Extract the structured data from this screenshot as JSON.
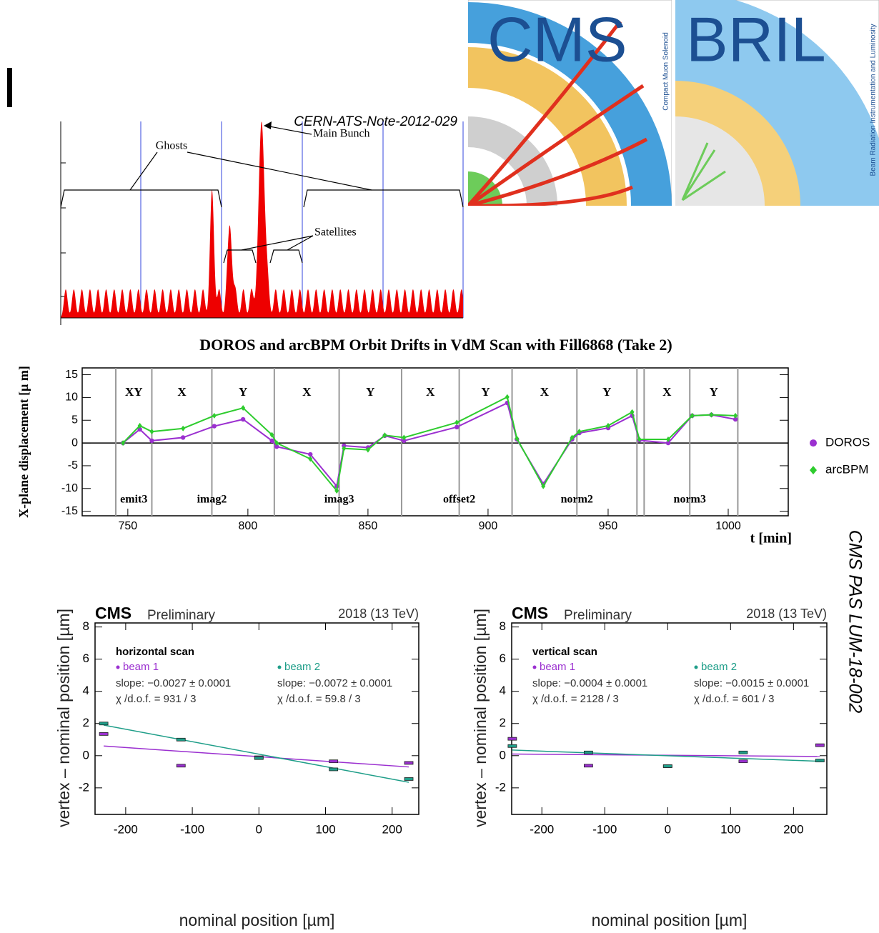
{
  "header": {
    "note": "CERN-ATS-Note-2012-029",
    "side_note": "CMS PAS LUM-18-002"
  },
  "logo": {
    "left": "CMS",
    "left_caption": "Compact Muon Solenoid",
    "right": "BRIL",
    "right_caption": "Beam Radiation Instrumentation and Luminosity"
  },
  "bunch_diagram": {
    "main": "Main Bunch",
    "ghosts": "Ghosts",
    "satellites": "Satellites"
  },
  "chart_data": [
    {
      "type": "line",
      "title": "DOROS and arcBPM Orbit Drifts in VdM Scan with Fill6868 (Take 2)",
      "x_label": "t [min]",
      "y_label": "X-plane displacement [μ m]",
      "xlim": [
        731,
        1025
      ],
      "ylim": [
        -16,
        16.5
      ],
      "xticks": [
        750,
        800,
        850,
        900,
        950,
        1000
      ],
      "yticks": [
        -15,
        -10,
        -5,
        0,
        5,
        10,
        15
      ],
      "scan_boundaries": [
        745,
        760,
        785,
        811,
        838,
        864,
        888,
        910,
        937,
        962,
        965,
        984,
        1004
      ],
      "scan_planes": [
        "XY",
        "X",
        "Y",
        "X",
        "Y",
        "X",
        "Y",
        "X",
        "Y",
        null,
        "X",
        "Y"
      ],
      "scan_names": [
        "emit3",
        "imag2",
        "imag3",
        "offset2",
        "norm2",
        "norm3"
      ],
      "legend": "right",
      "series": [
        {
          "name": "DOROS",
          "color": "#9b30d0",
          "marker": "circle",
          "x": [
            748,
            755,
            760,
            773,
            786,
            798,
            810,
            812,
            826,
            837,
            840,
            850,
            857,
            865,
            887,
            908,
            912,
            923,
            935,
            938,
            950,
            960,
            963,
            975,
            985,
            993,
            1003
          ],
          "values": [
            0,
            3,
            0.5,
            1.2,
            3.7,
            5.2,
            0.5,
            -0.8,
            -2.5,
            -9.5,
            -0.6,
            -1,
            1.6,
            0.5,
            3.5,
            8.8,
            0.8,
            -9,
            0.8,
            2.2,
            3.3,
            6,
            0.6,
            0,
            6,
            6.2,
            5.2
          ]
        },
        {
          "name": "arcBPM",
          "color": "#2ecc2e",
          "marker": "diamond",
          "x": [
            748,
            755,
            760,
            773,
            786,
            798,
            810,
            812,
            826,
            837,
            840,
            850,
            857,
            865,
            887,
            908,
            912,
            923,
            935,
            938,
            950,
            960,
            963,
            975,
            985,
            993,
            1003
          ],
          "values": [
            0,
            3.8,
            2.5,
            3.2,
            6,
            7.7,
            1.8,
            0,
            -3.5,
            -10.5,
            -1.2,
            -1.5,
            1.7,
            1.2,
            4.5,
            10.1,
            1,
            -9.5,
            1.2,
            2.5,
            3.8,
            6.8,
            0.8,
            0.8,
            6,
            6.2,
            6
          ]
        }
      ]
    },
    {
      "type": "scatter",
      "brand": "CMS",
      "status": "Preliminary",
      "energy": "2018 (13 TeV)",
      "scan": "horizontal scan",
      "x_label": "nominal position [µm]",
      "y_label": "vertex – nominal position [µm]",
      "xlim": [
        -246,
        240
      ],
      "ylim": [
        -3.65,
        8.25
      ],
      "xticks": [
        -200,
        -100,
        0,
        100,
        200
      ],
      "yticks": [
        -2,
        0,
        2,
        4,
        6,
        8
      ],
      "series": [
        {
          "name": "beam 1",
          "color": "#9b30d0",
          "slope": "slope: −0.0027 ± 0.0001",
          "chi2": "χ /d.o.f. = 931 / 3",
          "x": [
            -233,
            -117,
            0,
            112,
            225
          ],
          "values": [
            1.35,
            -0.62,
            -0.1,
            -0.35,
            -0.45
          ],
          "fit_x": [
            -233,
            225
          ],
          "fit_values": [
            0.6,
            -0.7
          ]
        },
        {
          "name": "beam 2",
          "color": "#1f9e89",
          "slope": "slope: −0.0072 ± 0.0001",
          "chi2": "χ /d.o.f. = 59.8 / 3",
          "x": [
            -233,
            -117,
            0,
            112,
            225
          ],
          "values": [
            2.0,
            1.0,
            -0.15,
            -0.85,
            -1.45
          ],
          "fit_x": [
            -233,
            225
          ],
          "fit_values": [
            1.9,
            -1.65
          ]
        }
      ]
    },
    {
      "type": "scatter",
      "brand": "CMS",
      "status": "Preliminary",
      "energy": "2018 (13 TeV)",
      "scan": "vertical scan",
      "x_label": "nominal position [µm]",
      "y_label": "vertex – nominal position [µm]",
      "xlim": [
        -248,
        253
      ],
      "ylim": [
        -3.65,
        8.25
      ],
      "xticks": [
        -200,
        -100,
        0,
        100,
        200
      ],
      "yticks": [
        -2,
        0,
        2,
        4,
        6,
        8
      ],
      "series": [
        {
          "name": "beam 1",
          "color": "#9b30d0",
          "slope": "slope: −0.0004 ± 0.0001",
          "chi2": "χ /d.o.f. = 2128 / 3",
          "x": [
            -247,
            -126,
            0,
            120,
            242
          ],
          "values": [
            1.05,
            -0.62,
            -0.65,
            -0.35,
            0.65
          ],
          "fit_x": [
            -247,
            242
          ],
          "fit_values": [
            0.1,
            -0.05
          ]
        },
        {
          "name": "beam 2",
          "color": "#1f9e89",
          "slope": "slope: −0.0015 ± 0.0001",
          "chi2": "χ /d.o.f. = 601 / 3",
          "x": [
            -247,
            -126,
            0,
            120,
            242
          ],
          "values": [
            0.6,
            0.2,
            -0.65,
            0.2,
            -0.3
          ],
          "fit_x": [
            -247,
            242
          ],
          "fit_values": [
            0.35,
            -0.35
          ]
        }
      ]
    }
  ]
}
